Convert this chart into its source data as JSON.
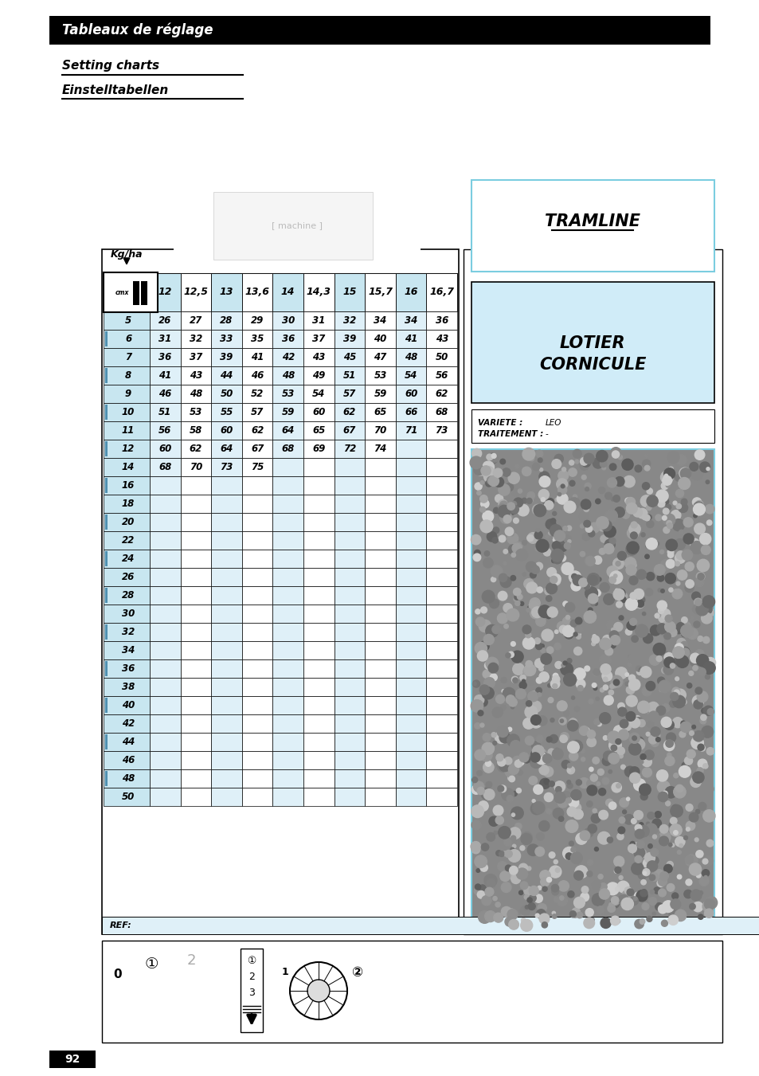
{
  "page_title": "Tableaux de réglage",
  "subtitle1": "Setting charts",
  "subtitle2": "Einstelltabellen",
  "right_title": "TRAMLINE",
  "right_box_title1": "LOTIER",
  "right_box_title2": "CORNICULE",
  "variete_label": "VARIETE :",
  "variete_value": "LEO",
  "traitement_label": "TRAITEMENT :",
  "traitement_value": "-",
  "col_headers": [
    "12",
    "12,5",
    "13",
    "13,6",
    "14",
    "14,3",
    "15",
    "15,7",
    "16",
    "16,7"
  ],
  "row_labels": [
    "5",
    "6",
    "7",
    "8",
    "9",
    "10",
    "11",
    "12",
    "14",
    "16",
    "18",
    "20",
    "22",
    "24",
    "26",
    "28",
    "30",
    "32",
    "34",
    "36",
    "38",
    "40",
    "42",
    "44",
    "46",
    "48",
    "50"
  ],
  "table_data": [
    [
      26,
      27,
      28,
      29,
      30,
      31,
      32,
      34,
      34,
      36
    ],
    [
      31,
      32,
      33,
      35,
      36,
      37,
      39,
      40,
      41,
      43
    ],
    [
      36,
      37,
      39,
      41,
      42,
      43,
      45,
      47,
      48,
      50
    ],
    [
      41,
      43,
      44,
      46,
      48,
      49,
      51,
      53,
      54,
      56
    ],
    [
      46,
      48,
      50,
      52,
      53,
      54,
      57,
      59,
      60,
      62
    ],
    [
      51,
      53,
      55,
      57,
      59,
      60,
      62,
      65,
      66,
      68
    ],
    [
      56,
      58,
      60,
      62,
      64,
      65,
      67,
      70,
      71,
      73
    ],
    [
      60,
      62,
      64,
      67,
      68,
      69,
      72,
      74,
      null,
      null
    ],
    [
      68,
      70,
      73,
      75,
      null,
      null,
      null,
      null,
      null,
      null
    ],
    [
      null,
      null,
      null,
      null,
      null,
      null,
      null,
      null,
      null,
      null
    ],
    [
      null,
      null,
      null,
      null,
      null,
      null,
      null,
      null,
      null,
      null
    ],
    [
      null,
      null,
      null,
      null,
      null,
      null,
      null,
      null,
      null,
      null
    ],
    [
      null,
      null,
      null,
      null,
      null,
      null,
      null,
      null,
      null,
      null
    ],
    [
      null,
      null,
      null,
      null,
      null,
      null,
      null,
      null,
      null,
      null
    ],
    [
      null,
      null,
      null,
      null,
      null,
      null,
      null,
      null,
      null,
      null
    ],
    [
      null,
      null,
      null,
      null,
      null,
      null,
      null,
      null,
      null,
      null
    ],
    [
      null,
      null,
      null,
      null,
      null,
      null,
      null,
      null,
      null,
      null
    ],
    [
      null,
      null,
      null,
      null,
      null,
      null,
      null,
      null,
      null,
      null
    ],
    [
      null,
      null,
      null,
      null,
      null,
      null,
      null,
      null,
      null,
      null
    ],
    [
      null,
      null,
      null,
      null,
      null,
      null,
      null,
      null,
      null,
      null
    ],
    [
      null,
      null,
      null,
      null,
      null,
      null,
      null,
      null,
      null,
      null
    ],
    [
      null,
      null,
      null,
      null,
      null,
      null,
      null,
      null,
      null,
      null
    ],
    [
      null,
      null,
      null,
      null,
      null,
      null,
      null,
      null,
      null,
      null
    ],
    [
      null,
      null,
      null,
      null,
      null,
      null,
      null,
      null,
      null,
      null
    ],
    [
      null,
      null,
      null,
      null,
      null,
      null,
      null,
      null,
      null,
      null
    ],
    [
      null,
      null,
      null,
      null,
      null,
      null,
      null,
      null,
      null,
      null
    ],
    [
      null,
      null,
      null,
      null,
      null,
      null,
      null,
      null,
      null,
      null
    ]
  ],
  "bg_color": "#ffffff",
  "header_bg": "#c8e6f0",
  "row_bg_even": "#dff0f8",
  "row_bg_odd": "#ffffff",
  "seed_bg": "#999999",
  "page_num": "92",
  "ref_label": "REF:"
}
